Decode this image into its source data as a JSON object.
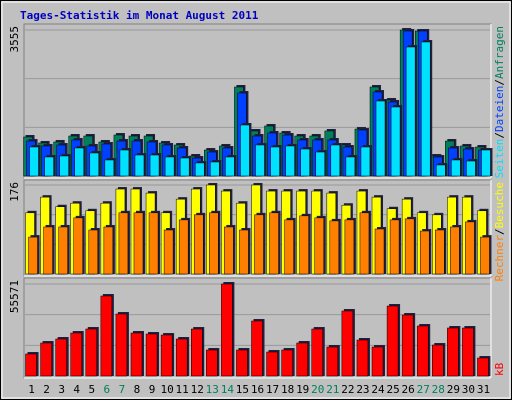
{
  "chart_data": {
    "type": "bar",
    "title": "Tages-Statistik im Monat August 2011",
    "categories": [
      "1",
      "2",
      "3",
      "4",
      "5",
      "6",
      "7",
      "8",
      "9",
      "10",
      "11",
      "12",
      "13",
      "14",
      "15",
      "16",
      "17",
      "18",
      "19",
      "20",
      "21",
      "22",
      "23",
      "24",
      "25",
      "26",
      "27",
      "28",
      "29",
      "30",
      "31"
    ],
    "weekend_days": [
      "6",
      "7",
      "13",
      "14",
      "20",
      "21",
      "27",
      "28"
    ],
    "weekend_color": "#00805c",
    "legend_separator": "/",
    "panels": [
      {
        "ylim": [
          0,
          3555
        ],
        "yticks": [
          3555
        ],
        "series": [
          {
            "name": "Anfragen",
            "color": "#00805c",
            "values": [
              950,
              804,
              828,
              974,
              974,
              828,
              998,
              974,
              974,
              804,
              755,
              487,
              633,
              731,
              2167,
              1096,
              1218,
              1047,
              974,
              974,
              1096,
              755,
              1144,
              2167,
              1851,
              3555,
              3530,
              487,
              852,
              731,
              706
            ]
          },
          {
            "name": "Dateien",
            "color": "#0040ff",
            "values": [
              852,
              731,
              755,
              877,
              731,
              779,
              852,
              852,
              828,
              755,
              682,
              438,
              584,
              682,
              2021,
              974,
              1047,
              998,
              877,
              877,
              877,
              706,
              1120,
              2045,
              1802,
              3531,
              3531,
              463,
              682,
              657,
              633
            ]
          },
          {
            "name": "Seiten",
            "color": "#00e0ff",
            "values": [
              706,
              463,
              487,
              682,
              560,
              390,
              633,
              511,
              511,
              463,
              438,
              317,
              341,
              463,
              1242,
              755,
              706,
              731,
              657,
              584,
              755,
              463,
              706,
              1826,
              1680,
              3141,
              3263,
              268,
              390,
              365,
              633
            ]
          }
        ]
      },
      {
        "ylim": [
          0,
          176
        ],
        "yticks": [
          176
        ],
        "series": [
          {
            "name": "Besuche",
            "color": "#ffff00",
            "values": [
              121,
              152,
              133,
              140,
              125,
              140,
              168,
              168,
              160,
              121,
              148,
              168,
              176,
              164,
              140,
              176,
              164,
              164,
              164,
              164,
              160,
              136,
              164,
              152,
              129,
              148,
              121,
              117,
              152,
              152,
              125
            ]
          },
          {
            "name": "Rechner",
            "color": "#ff8000",
            "values": [
              73,
              93,
              93,
              111,
              87,
              93,
              121,
              121,
              121,
              87,
              107,
              117,
              121,
              93,
              87,
              117,
              121,
              107,
              115,
              111,
              105,
              107,
              121,
              89,
              107,
              109,
              85,
              87,
              93,
              103,
              73
            ]
          }
        ]
      },
      {
        "ylim": [
          0,
          55571
        ],
        "yticks": [
          55571
        ],
        "series": [
          {
            "name": "kB",
            "color": "#ff0000",
            "values": [
              13288,
              19932,
              22348,
              25972,
              28388,
              48320,
              37448,
              25972,
              25368,
              24764,
              22348,
              28388,
              15704,
              55571,
              15704,
              33220,
              14496,
              15704,
              19932,
              28388,
              17516,
              39260,
              21744,
              17516,
              42280,
              36844,
              30200,
              18724,
              28992,
              28992,
              10872
            ]
          }
        ]
      }
    ]
  }
}
